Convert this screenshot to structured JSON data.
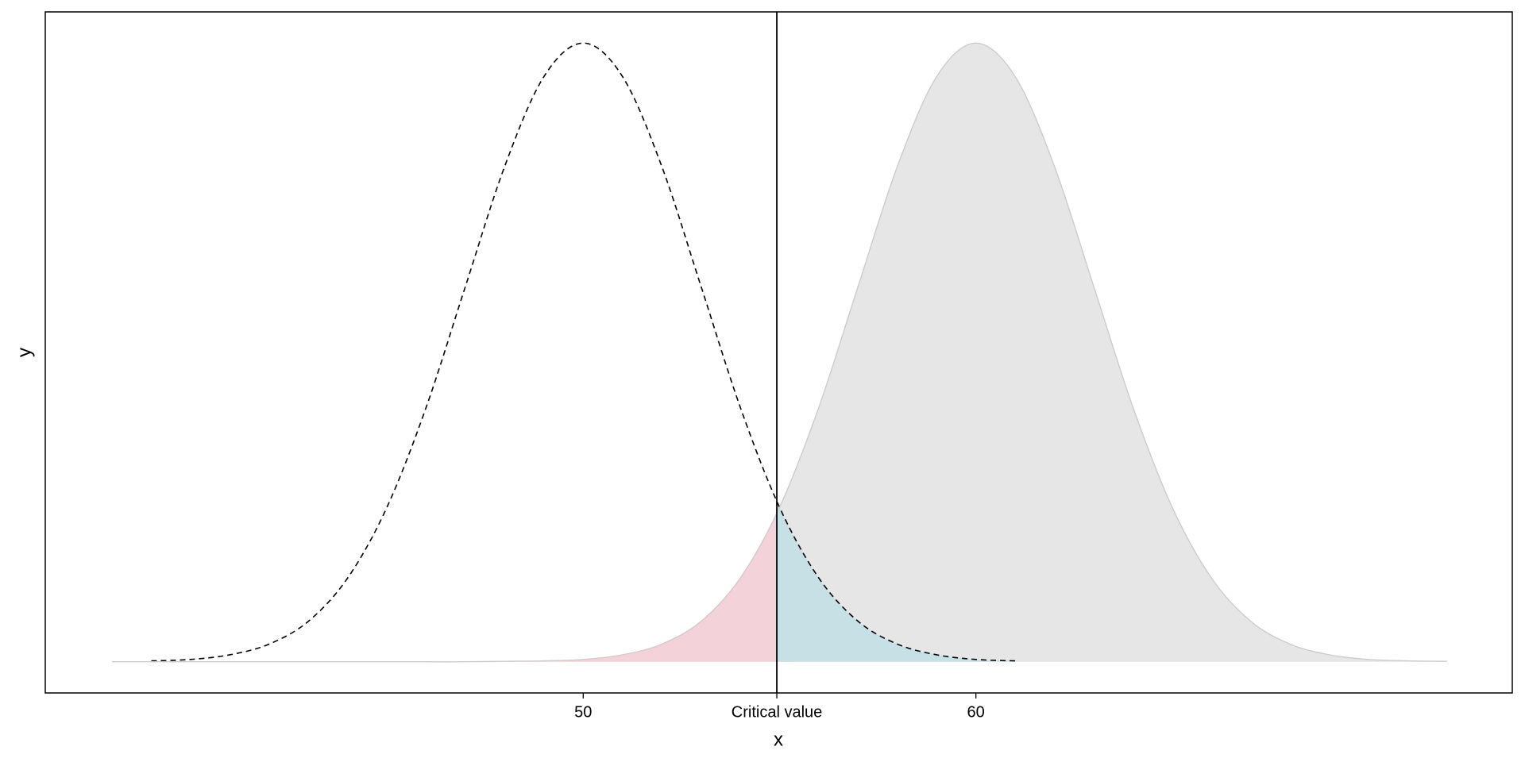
{
  "chart_data": {
    "type": "density",
    "x_label": "x",
    "y_label": "y",
    "xlim": [
      36.3,
      73.66
    ],
    "ylim": [
      -0.0067,
      0.1397
    ],
    "xticks": [
      50,
      {
        "value": 54.93,
        "label": "Critical value"
      },
      60
    ],
    "critical_line_color": "#000000",
    "alpha_fill": "#c7e0e6",
    "beta_fill": "#f4d2d9",
    "series": [
      {
        "color": "#000000",
        "linestyle": "dashed",
        "x": [
          39,
          40,
          41,
          42,
          43,
          44,
          45,
          46,
          47,
          48,
          49,
          50,
          51,
          52,
          53,
          54,
          55,
          56,
          57,
          58,
          59,
          60,
          61
        ],
        "values": [
          0.0002,
          0.0005,
          0.0015,
          0.0038,
          0.0087,
          0.018,
          0.0332,
          0.0547,
          0.0807,
          0.1065,
          0.1258,
          0.133,
          0.1258,
          0.1065,
          0.0807,
          0.0547,
          0.0332,
          0.018,
          0.0087,
          0.0038,
          0.0015,
          0.0005,
          0.0002
        ]
      },
      {
        "color": "#cccccc",
        "fill": "#e6e6e6",
        "linestyle": "solid",
        "x": [
          38,
          39,
          40,
          41,
          42,
          43,
          44,
          45,
          46,
          47,
          48,
          49,
          50,
          51,
          52,
          53,
          54,
          55,
          56,
          57,
          58,
          59,
          60,
          61,
          62,
          63,
          64,
          65,
          66,
          67,
          68,
          69,
          70,
          71,
          72
        ],
        "values": [
          0,
          0,
          0,
          0,
          0,
          0,
          0,
          0,
          0,
          0,
          0.0001,
          0.0002,
          0.0005,
          0.0015,
          0.0038,
          0.0087,
          0.018,
          0.0332,
          0.0547,
          0.0807,
          0.1065,
          0.1258,
          0.133,
          0.1258,
          0.1065,
          0.0807,
          0.0547,
          0.0332,
          0.018,
          0.0087,
          0.0038,
          0.0015,
          0.0005,
          0.0002,
          0.0001
        ]
      }
    ]
  }
}
